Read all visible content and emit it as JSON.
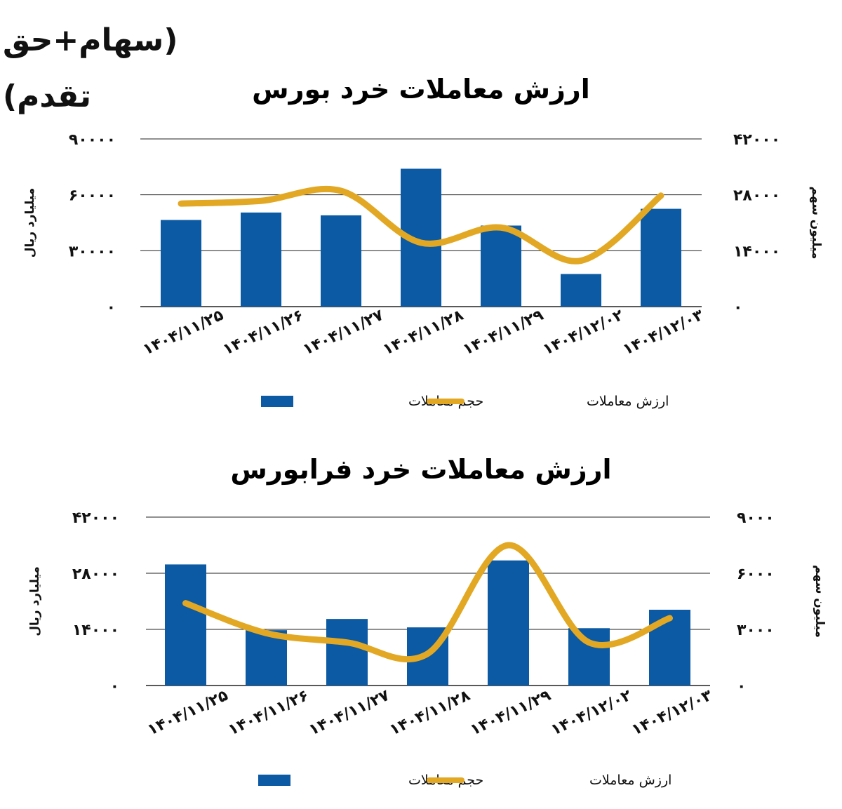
{
  "header": {
    "title": "(سهام+حق تقدم)"
  },
  "colors": {
    "bar": "#0b5aa3",
    "line": "#e2a823",
    "grid": "#222222",
    "watermark": "#f3f3f3"
  },
  "chart_data": [
    {
      "type": "bar",
      "title": "ارزش معاملات خرد بورس",
      "categories": [
        "۱۴۰۴/۱۱/۲۵",
        "۱۴۰۴/۱۱/۲۶",
        "۱۴۰۴/۱۱/۲۷",
        "۱۴۰۴/۱۱/۲۸",
        "۱۴۰۴/۱۱/۲۹",
        "۱۴۰۴/۱۲/۰۲",
        "۱۴۰۴/۱۲/۰۳"
      ],
      "left_axis": {
        "label": "میلیارد ریال",
        "ticks": [
          "۹۰۰۰۰",
          "۶۰۰۰۰",
          "۳۰۰۰۰",
          "۰"
        ],
        "ylim": [
          0,
          90000
        ]
      },
      "right_axis": {
        "label": "میلیون سهم",
        "ticks": [
          "۴۲۰۰۰",
          "۲۸۰۰۰",
          "۱۴۰۰۰",
          "۰"
        ],
        "ylim": [
          0,
          42000
        ]
      },
      "series": [
        {
          "name": "حجم معاملات",
          "type": "bar",
          "axis": "left",
          "values": [
            46500,
            50500,
            49000,
            74000,
            43500,
            17500,
            52500
          ]
        },
        {
          "name": "ارزش معاملات",
          "type": "line",
          "axis": "right",
          "values": [
            25800,
            26500,
            29000,
            16000,
            19800,
            11500,
            27800
          ]
        }
      ],
      "legend_position": "bottom",
      "grid": true
    },
    {
      "type": "bar",
      "title": "ارزش معاملات خرد فرابورس",
      "categories": [
        "۱۴۰۴/۱۱/۲۵",
        "۱۴۰۴/۱۱/۲۶",
        "۱۴۰۴/۱۱/۲۷",
        "۱۴۰۴/۱۱/۲۸",
        "۱۴۰۴/۱۱/۲۹",
        "۱۴۰۴/۱۲/۰۲",
        "۱۴۰۴/۱۲/۰۳"
      ],
      "left_axis": {
        "label": "میلیارد ریال",
        "ticks": [
          "۴۲۰۰۰",
          "۲۸۰۰۰",
          "۱۴۰۰۰",
          "۰"
        ],
        "ylim": [
          0,
          42000
        ]
      },
      "right_axis": {
        "label": "میلیون سهم",
        "ticks": [
          "۹۰۰۰",
          "۶۰۰۰",
          "۳۰۰۰",
          "۰"
        ],
        "ylim": [
          0,
          9000
        ]
      },
      "series": [
        {
          "name": "حجم معاملات",
          "type": "bar",
          "axis": "left",
          "values": [
            30200,
            13800,
            16600,
            14500,
            31200,
            14300,
            18900
          ]
        },
        {
          "name": "ارزش معاملات",
          "type": "line",
          "axis": "right",
          "values": [
            4400,
            2800,
            2300,
            1700,
            7500,
            2300,
            3600
          ]
        }
      ],
      "legend_position": "bottom",
      "grid": true
    }
  ]
}
